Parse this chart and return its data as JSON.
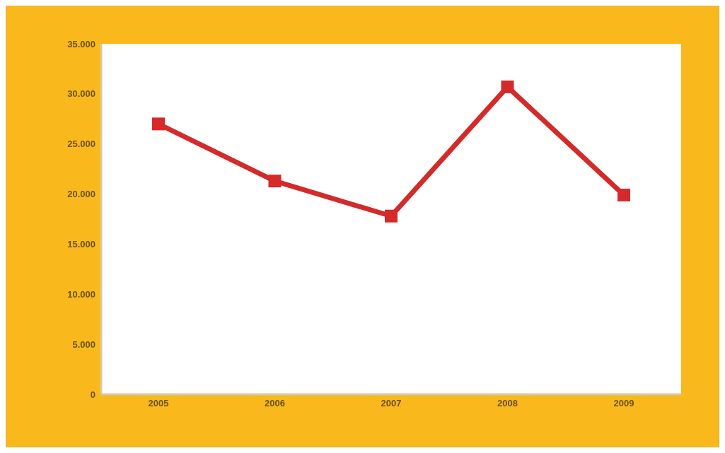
{
  "chart_data": {
    "type": "line",
    "categories": [
      "2005",
      "2006",
      "2007",
      "2008",
      "2009"
    ],
    "series": [
      {
        "color": "#d42a2a",
        "values": [
          27000,
          21300,
          17800,
          30700,
          19900
        ]
      }
    ],
    "ylim": [
      0,
      35000
    ],
    "yticks": [
      0,
      {
        "value": 5000,
        "label": "5.000"
      },
      {
        "value": 10000,
        "label": "10.000"
      },
      {
        "value": 15000,
        "label": "15.000"
      },
      {
        "value": 20000,
        "label": "20.000"
      },
      {
        "value": 25000,
        "label": "25.000"
      },
      {
        "value": 30000,
        "label": "30.000"
      },
      {
        "value": 35000,
        "label": "35.000"
      }
    ],
    "marker": "square",
    "line_style": "solid",
    "legend": false
  }
}
